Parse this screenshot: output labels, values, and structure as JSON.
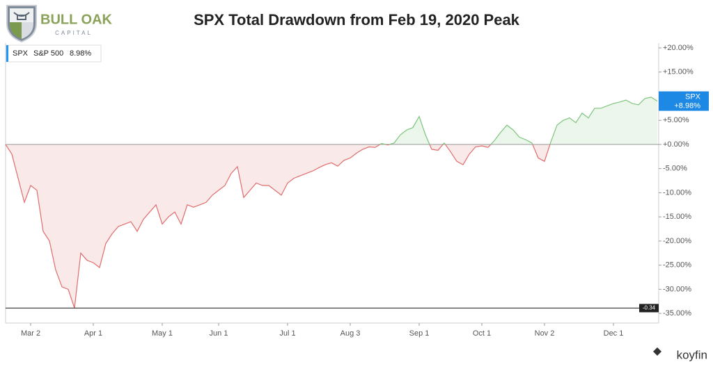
{
  "brand": {
    "name": "BULL OAK",
    "sub": "CAPITAL"
  },
  "footer_brand": "koyfin",
  "chart_data": {
    "type": "line",
    "title": "SPX Total Drawdown from Feb 19, 2020 Peak",
    "categories": [
      null,
      null,
      null,
      null,
      "Mar 2",
      null,
      null,
      null,
      null,
      null,
      null,
      null,
      null,
      null,
      "Apr 1",
      null,
      null,
      null,
      null,
      null,
      null,
      null,
      null,
      null,
      null,
      "May 1",
      null,
      null,
      null,
      null,
      null,
      null,
      null,
      null,
      "Jun 1",
      null,
      null,
      null,
      null,
      null,
      null,
      null,
      null,
      null,
      null,
      "Jul 1",
      null,
      null,
      null,
      null,
      null,
      null,
      null,
      null,
      null,
      "Aug 3",
      null,
      null,
      null,
      null,
      null,
      null,
      null,
      null,
      null,
      null,
      "Sep 1",
      null,
      null,
      null,
      null,
      null,
      null,
      null,
      null,
      null,
      "Oct 1",
      null,
      null,
      null,
      null,
      null,
      null,
      null,
      null,
      null,
      "Nov 2",
      null,
      null,
      null,
      null,
      null,
      null,
      null,
      null,
      null,
      null,
      "Dec 1",
      null,
      null,
      null,
      null,
      null,
      null,
      null
    ],
    "series": [
      {
        "name": "S&P 500",
        "color": "#e06c6c",
        "positive_color": "#7cc47c",
        "values": [
          0,
          -2,
          -7,
          -12,
          -8.5,
          -9.5,
          -18,
          -20,
          -26,
          -29.5,
          -30,
          -33.9,
          -22.5,
          -24,
          -24.5,
          -25.5,
          -20.5,
          -18.5,
          -17,
          -16.5,
          -16,
          -18,
          -15.5,
          -14,
          -12.5,
          -16.5,
          -15,
          -14,
          -16.5,
          -12.5,
          -13,
          -12.5,
          -12,
          -10.5,
          -9.5,
          -8.5,
          -6,
          -4.6,
          -11,
          -9.5,
          -8,
          -8.5,
          -8.5,
          -9.5,
          -10.5,
          -8,
          -7,
          -6.5,
          -6,
          -5.5,
          -4.8,
          -4.2,
          -3.8,
          -4.5,
          -3.3,
          -2.8,
          -1.8,
          -1,
          -0.5,
          -0.6,
          0.2,
          -0.1,
          0.3,
          2,
          3,
          3.5,
          5.8,
          2,
          -1,
          -1.2,
          0.3,
          -1.5,
          -3.5,
          -4.2,
          -2,
          -0.5,
          -0.3,
          -0.6,
          0.8,
          2.5,
          4,
          3,
          1.5,
          1,
          0.3,
          -2.8,
          -3.5,
          0.5,
          4,
          5,
          5.5,
          4.5,
          6.5,
          5.5,
          7.5,
          7.5,
          8,
          8.5,
          8.8,
          9.2,
          8.5,
          8.2,
          9.5,
          9.8,
          8.98
        ]
      }
    ],
    "legend": {
      "ticker": "SPX",
      "value_label": "8.98%"
    },
    "last_tag": {
      "ticker": "SPX",
      "label": "+8.98%"
    },
    "min_line": {
      "value": -33.9,
      "label": "-0.34"
    },
    "ylim": [
      -37,
      21
    ],
    "yticks": [
      {
        "value": -35,
        "label": "-35.00%"
      },
      {
        "value": -30,
        "label": "-30.00%"
      },
      {
        "value": -25,
        "label": "-25.00%"
      },
      {
        "value": -20,
        "label": "-20.00%"
      },
      {
        "value": -15,
        "label": "-15.00%"
      },
      {
        "value": -10,
        "label": "-10.00%"
      },
      {
        "value": -5,
        "label": "-5.00%"
      },
      {
        "value": 0,
        "label": "+0.00%"
      },
      {
        "value": 5,
        "label": "+5.00%"
      },
      {
        "value": 10,
        "label": "+10.00%"
      },
      {
        "value": 15,
        "label": "+15.00%"
      },
      {
        "value": 20,
        "label": "+20.00%"
      }
    ]
  }
}
